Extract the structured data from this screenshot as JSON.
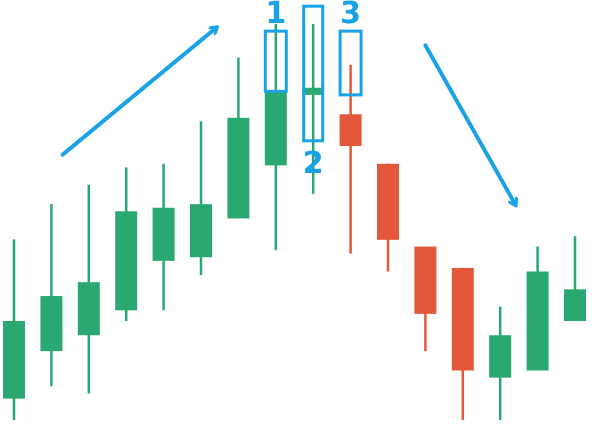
{
  "colors": {
    "bull": "#2aa872",
    "bear": "#e3573a",
    "annotation": "#19a3e6",
    "background": "#ffffff"
  },
  "chart_data": {
    "type": "candlestick",
    "title": "",
    "xlabel": "",
    "ylabel": "",
    "grid": false,
    "ylim": [
      0,
      100
    ],
    "candles": [
      {
        "index": 0,
        "open": 5.4,
        "high": 45.6,
        "low": 0.0,
        "close": 25.0,
        "direction": "up"
      },
      {
        "index": 1,
        "open": 17.4,
        "high": 54.5,
        "low": 8.5,
        "close": 31.3,
        "direction": "up"
      },
      {
        "index": 2,
        "open": 21.4,
        "high": 59.4,
        "low": 6.7,
        "close": 34.8,
        "direction": "up"
      },
      {
        "index": 3,
        "open": 27.7,
        "high": 63.8,
        "low": 25.0,
        "close": 52.7,
        "direction": "up"
      },
      {
        "index": 4,
        "open": 40.2,
        "high": 64.7,
        "low": 27.7,
        "close": 53.6,
        "direction": "up"
      },
      {
        "index": 5,
        "open": 41.1,
        "high": 75.4,
        "low": 36.6,
        "close": 54.5,
        "direction": "up"
      },
      {
        "index": 6,
        "open": 50.9,
        "high": 91.5,
        "low": 50.9,
        "close": 76.3,
        "direction": "up"
      },
      {
        "index": 7,
        "open": 64.3,
        "high": 100.0,
        "low": 42.9,
        "close": 83.0,
        "direction": "up"
      },
      {
        "index": 8,
        "open": 82.1,
        "high": 100.0,
        "low": 57.1,
        "close": 83.9,
        "direction": "up"
      },
      {
        "index": 9,
        "open": 77.2,
        "high": 89.7,
        "low": 42.0,
        "close": 69.2,
        "direction": "down"
      },
      {
        "index": 10,
        "open": 64.7,
        "high": 64.7,
        "low": 37.5,
        "close": 45.5,
        "direction": "down"
      },
      {
        "index": 11,
        "open": 43.8,
        "high": 43.8,
        "low": 17.4,
        "close": 26.8,
        "direction": "down"
      },
      {
        "index": 12,
        "open": 38.4,
        "high": 38.4,
        "low": 0.0,
        "close": 12.5,
        "direction": "down"
      },
      {
        "index": 13,
        "open": 10.7,
        "high": 28.6,
        "low": 0.0,
        "close": 21.4,
        "direction": "up"
      },
      {
        "index": 14,
        "open": 12.5,
        "high": 43.8,
        "low": 12.5,
        "close": 37.5,
        "direction": "up"
      },
      {
        "index": 15,
        "open": 25.0,
        "high": 46.4,
        "low": 25.0,
        "close": 33.0,
        "direction": "up"
      }
    ],
    "annotations": [
      {
        "type": "box",
        "label": "1",
        "candle": 7,
        "from": 83.0,
        "to": 98.2
      },
      {
        "type": "box",
        "label": "2",
        "candle": 8,
        "from": 70.5,
        "to": 104.5
      },
      {
        "type": "box",
        "label": "3",
        "candle": 9,
        "from": 82.1,
        "to": 98.2
      },
      {
        "type": "arrow",
        "direction": "up",
        "from_candle": 1.3,
        "to_candle": 5.4,
        "from_y": 67.0,
        "to_y": 99.0
      },
      {
        "type": "arrow",
        "direction": "down",
        "from_candle": 11.0,
        "to_candle": 13.4,
        "from_y": 94.6,
        "to_y": 54.5
      }
    ]
  }
}
